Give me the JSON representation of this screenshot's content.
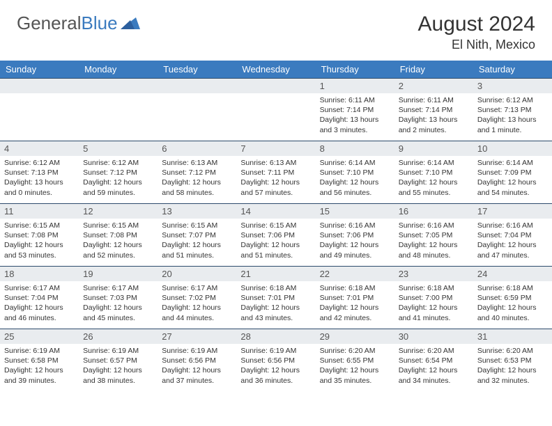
{
  "brand": {
    "part1": "General",
    "part2": "Blue"
  },
  "title": "August 2024",
  "location": "El Nith, Mexico",
  "colors": {
    "header_bg": "#3b7bbf",
    "header_text": "#ffffff",
    "daynum_bg": "#e9ecef",
    "border": "#2c4a6b",
    "text": "#333333"
  },
  "weekdays": [
    "Sunday",
    "Monday",
    "Tuesday",
    "Wednesday",
    "Thursday",
    "Friday",
    "Saturday"
  ],
  "weeks": [
    [
      null,
      null,
      null,
      null,
      {
        "n": "1",
        "sr": "Sunrise: 6:11 AM",
        "ss": "Sunset: 7:14 PM",
        "dl1": "Daylight: 13 hours",
        "dl2": "and 3 minutes."
      },
      {
        "n": "2",
        "sr": "Sunrise: 6:11 AM",
        "ss": "Sunset: 7:14 PM",
        "dl1": "Daylight: 13 hours",
        "dl2": "and 2 minutes."
      },
      {
        "n": "3",
        "sr": "Sunrise: 6:12 AM",
        "ss": "Sunset: 7:13 PM",
        "dl1": "Daylight: 13 hours",
        "dl2": "and 1 minute."
      }
    ],
    [
      {
        "n": "4",
        "sr": "Sunrise: 6:12 AM",
        "ss": "Sunset: 7:13 PM",
        "dl1": "Daylight: 13 hours",
        "dl2": "and 0 minutes."
      },
      {
        "n": "5",
        "sr": "Sunrise: 6:12 AM",
        "ss": "Sunset: 7:12 PM",
        "dl1": "Daylight: 12 hours",
        "dl2": "and 59 minutes."
      },
      {
        "n": "6",
        "sr": "Sunrise: 6:13 AM",
        "ss": "Sunset: 7:12 PM",
        "dl1": "Daylight: 12 hours",
        "dl2": "and 58 minutes."
      },
      {
        "n": "7",
        "sr": "Sunrise: 6:13 AM",
        "ss": "Sunset: 7:11 PM",
        "dl1": "Daylight: 12 hours",
        "dl2": "and 57 minutes."
      },
      {
        "n": "8",
        "sr": "Sunrise: 6:14 AM",
        "ss": "Sunset: 7:10 PM",
        "dl1": "Daylight: 12 hours",
        "dl2": "and 56 minutes."
      },
      {
        "n": "9",
        "sr": "Sunrise: 6:14 AM",
        "ss": "Sunset: 7:10 PM",
        "dl1": "Daylight: 12 hours",
        "dl2": "and 55 minutes."
      },
      {
        "n": "10",
        "sr": "Sunrise: 6:14 AM",
        "ss": "Sunset: 7:09 PM",
        "dl1": "Daylight: 12 hours",
        "dl2": "and 54 minutes."
      }
    ],
    [
      {
        "n": "11",
        "sr": "Sunrise: 6:15 AM",
        "ss": "Sunset: 7:08 PM",
        "dl1": "Daylight: 12 hours",
        "dl2": "and 53 minutes."
      },
      {
        "n": "12",
        "sr": "Sunrise: 6:15 AM",
        "ss": "Sunset: 7:08 PM",
        "dl1": "Daylight: 12 hours",
        "dl2": "and 52 minutes."
      },
      {
        "n": "13",
        "sr": "Sunrise: 6:15 AM",
        "ss": "Sunset: 7:07 PM",
        "dl1": "Daylight: 12 hours",
        "dl2": "and 51 minutes."
      },
      {
        "n": "14",
        "sr": "Sunrise: 6:15 AM",
        "ss": "Sunset: 7:06 PM",
        "dl1": "Daylight: 12 hours",
        "dl2": "and 51 minutes."
      },
      {
        "n": "15",
        "sr": "Sunrise: 6:16 AM",
        "ss": "Sunset: 7:06 PM",
        "dl1": "Daylight: 12 hours",
        "dl2": "and 49 minutes."
      },
      {
        "n": "16",
        "sr": "Sunrise: 6:16 AM",
        "ss": "Sunset: 7:05 PM",
        "dl1": "Daylight: 12 hours",
        "dl2": "and 48 minutes."
      },
      {
        "n": "17",
        "sr": "Sunrise: 6:16 AM",
        "ss": "Sunset: 7:04 PM",
        "dl1": "Daylight: 12 hours",
        "dl2": "and 47 minutes."
      }
    ],
    [
      {
        "n": "18",
        "sr": "Sunrise: 6:17 AM",
        "ss": "Sunset: 7:04 PM",
        "dl1": "Daylight: 12 hours",
        "dl2": "and 46 minutes."
      },
      {
        "n": "19",
        "sr": "Sunrise: 6:17 AM",
        "ss": "Sunset: 7:03 PM",
        "dl1": "Daylight: 12 hours",
        "dl2": "and 45 minutes."
      },
      {
        "n": "20",
        "sr": "Sunrise: 6:17 AM",
        "ss": "Sunset: 7:02 PM",
        "dl1": "Daylight: 12 hours",
        "dl2": "and 44 minutes."
      },
      {
        "n": "21",
        "sr": "Sunrise: 6:18 AM",
        "ss": "Sunset: 7:01 PM",
        "dl1": "Daylight: 12 hours",
        "dl2": "and 43 minutes."
      },
      {
        "n": "22",
        "sr": "Sunrise: 6:18 AM",
        "ss": "Sunset: 7:01 PM",
        "dl1": "Daylight: 12 hours",
        "dl2": "and 42 minutes."
      },
      {
        "n": "23",
        "sr": "Sunrise: 6:18 AM",
        "ss": "Sunset: 7:00 PM",
        "dl1": "Daylight: 12 hours",
        "dl2": "and 41 minutes."
      },
      {
        "n": "24",
        "sr": "Sunrise: 6:18 AM",
        "ss": "Sunset: 6:59 PM",
        "dl1": "Daylight: 12 hours",
        "dl2": "and 40 minutes."
      }
    ],
    [
      {
        "n": "25",
        "sr": "Sunrise: 6:19 AM",
        "ss": "Sunset: 6:58 PM",
        "dl1": "Daylight: 12 hours",
        "dl2": "and 39 minutes."
      },
      {
        "n": "26",
        "sr": "Sunrise: 6:19 AM",
        "ss": "Sunset: 6:57 PM",
        "dl1": "Daylight: 12 hours",
        "dl2": "and 38 minutes."
      },
      {
        "n": "27",
        "sr": "Sunrise: 6:19 AM",
        "ss": "Sunset: 6:56 PM",
        "dl1": "Daylight: 12 hours",
        "dl2": "and 37 minutes."
      },
      {
        "n": "28",
        "sr": "Sunrise: 6:19 AM",
        "ss": "Sunset: 6:56 PM",
        "dl1": "Daylight: 12 hours",
        "dl2": "and 36 minutes."
      },
      {
        "n": "29",
        "sr": "Sunrise: 6:20 AM",
        "ss": "Sunset: 6:55 PM",
        "dl1": "Daylight: 12 hours",
        "dl2": "and 35 minutes."
      },
      {
        "n": "30",
        "sr": "Sunrise: 6:20 AM",
        "ss": "Sunset: 6:54 PM",
        "dl1": "Daylight: 12 hours",
        "dl2": "and 34 minutes."
      },
      {
        "n": "31",
        "sr": "Sunrise: 6:20 AM",
        "ss": "Sunset: 6:53 PM",
        "dl1": "Daylight: 12 hours",
        "dl2": "and 32 minutes."
      }
    ]
  ]
}
